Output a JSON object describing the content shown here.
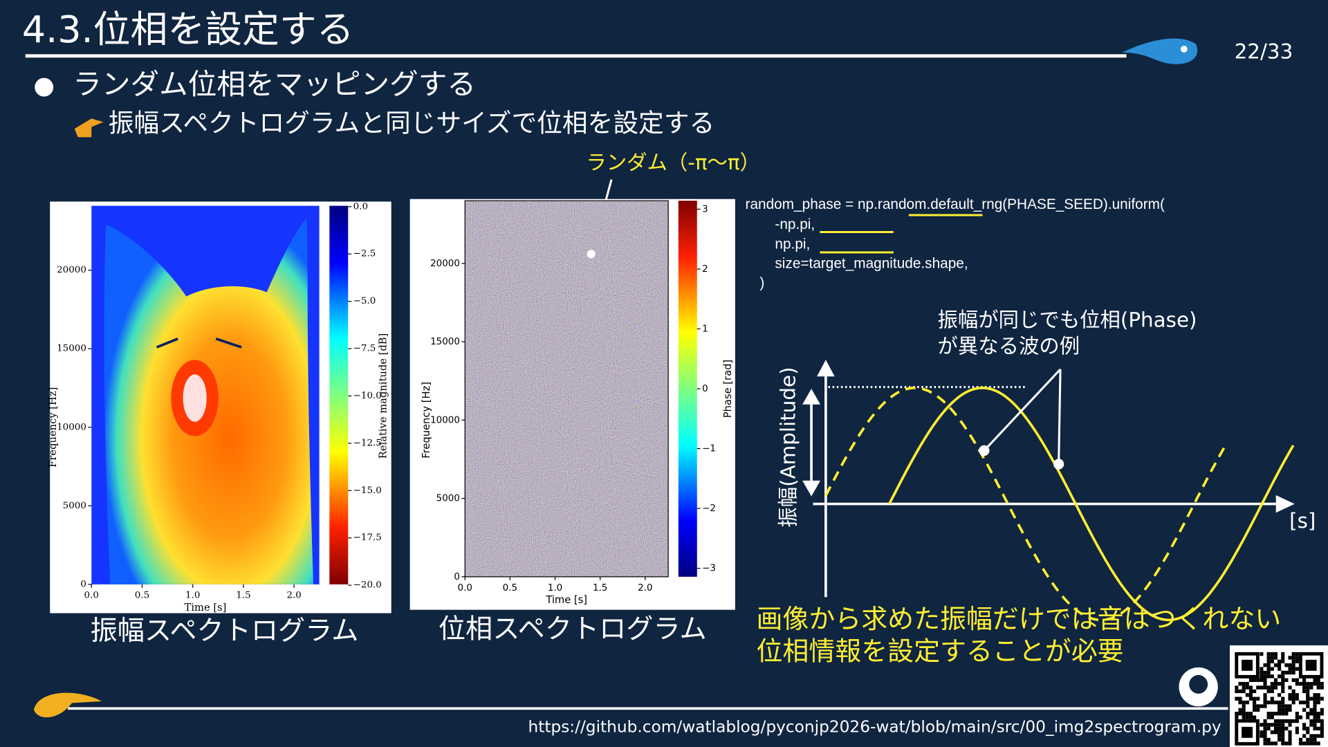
{
  "header": {
    "title": "4.3.位相を設定する",
    "page": "22/33"
  },
  "bullets": [
    "ランダム位相をマッピングする",
    "振幅スペクトログラムと同じサイズで位相を設定する"
  ],
  "annotation": "ランダム（-π～π）",
  "amplitude_plot": {
    "y_label": "Frequency [Hz]",
    "x_label": "Time [s]",
    "yticks": [
      "0",
      "5000",
      "10000",
      "15000",
      "20000"
    ],
    "xticks": [
      "0.0",
      "0.5",
      "1.0",
      "1.5",
      "2.0"
    ],
    "colorbar_label": "Relative magnitude [dB]",
    "colorbar_ticks": [
      "0.0",
      "−2.5",
      "−5.0",
      "−7.5",
      "−10.0",
      "−12.5",
      "−15.0",
      "−17.5",
      "−20.0"
    ],
    "caption": "振幅スペクトログラム"
  },
  "phase_plot": {
    "y_label": "Frequency [Hz]",
    "x_label": "Time [s]",
    "yticks": [
      "0",
      "5000",
      "10000",
      "15000",
      "20000"
    ],
    "xticks": [
      "0.0",
      "0.5",
      "1.0",
      "1.5",
      "2.0"
    ],
    "colorbar_label": "Phase [rad]",
    "colorbar_ticks": [
      "3",
      "2",
      "1",
      "0",
      "−1",
      "−2",
      "−3"
    ],
    "caption": "位相スペクトログラム"
  },
  "code": [
    "random_phase = np.random.default_rng(PHASE_SEED).uniform(",
    "-np.pi,",
    "np.pi,",
    "size=target_magnitude.shape,",
    ")"
  ],
  "wave": {
    "note": [
      "振幅が同じでも位相(Phase)",
      "が異なる波の例"
    ],
    "y_label": "振幅(Amplitude)",
    "x_unit": "[s]"
  },
  "conclusion": [
    "画像から求めた振幅だけでは音はつくれない",
    "位相情報を設定することが必要"
  ],
  "footer": {
    "url": "https://github.com/watlablog/pyconjp2026-wat/blob/main/src/00_img2spectrogram.py"
  }
}
